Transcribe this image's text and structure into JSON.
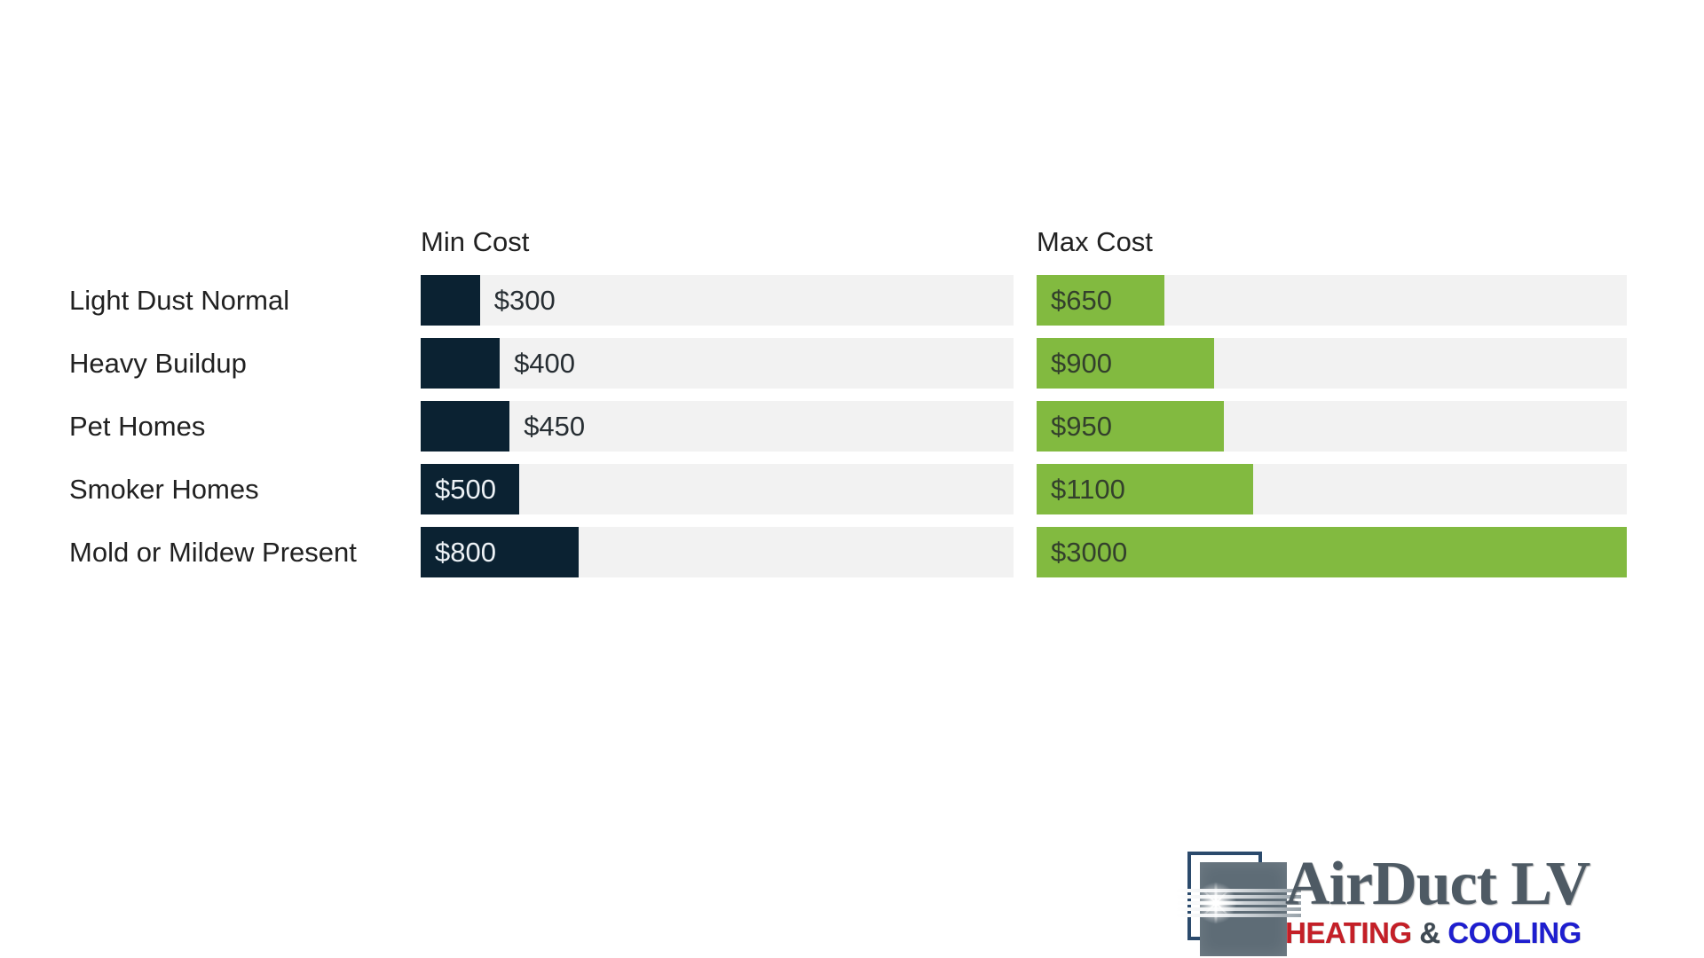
{
  "chart_data": {
    "type": "bar",
    "orientation": "horizontal",
    "title": "",
    "categories": [
      "Light Dust Normal",
      "Heavy Buildup",
      "Pet Homes",
      "Smoker Homes",
      "Mold or Mildew Present"
    ],
    "series": [
      {
        "name": "Min Cost",
        "values": [
          300,
          400,
          450,
          500,
          800
        ],
        "labels": [
          "$300",
          "$400",
          "$450",
          "$500",
          "$800"
        ],
        "label_inside": [
          false,
          false,
          false,
          true,
          true
        ],
        "color": "#0b2232"
      },
      {
        "name": "Max Cost",
        "values": [
          650,
          900,
          950,
          1100,
          3000
        ],
        "labels": [
          "$650",
          "$900",
          "$950",
          "$1100",
          "$3000"
        ],
        "label_inside": [
          true,
          true,
          true,
          true,
          true
        ],
        "color": "#82ba40"
      }
    ],
    "scale_max": 3000,
    "xlim": [
      0,
      3000
    ],
    "grid": false,
    "legend_position": "column-headers",
    "track_color": "#f2f2f2"
  },
  "colors": {
    "min_bar": "#0b2232",
    "max_bar": "#82ba40",
    "track": "#f2f2f2",
    "label_text": "#212121",
    "header_text": "#212121",
    "value_on_navy": "#edf2f6",
    "value_on_green": "#33402c",
    "value_outside": "#272e33"
  },
  "logo": {
    "title": "AirDuct LV",
    "subtitle_parts": [
      {
        "text": "HEATING",
        "color": "#c41f27"
      },
      {
        "text": " & ",
        "color": "#3f4a54"
      },
      {
        "text": "COOLING",
        "color": "#1e1ecf"
      }
    ],
    "colors": {
      "title": "#4e5a64",
      "duct_square": "#5e6c76",
      "duct_frame": "#2b4a6c"
    }
  }
}
